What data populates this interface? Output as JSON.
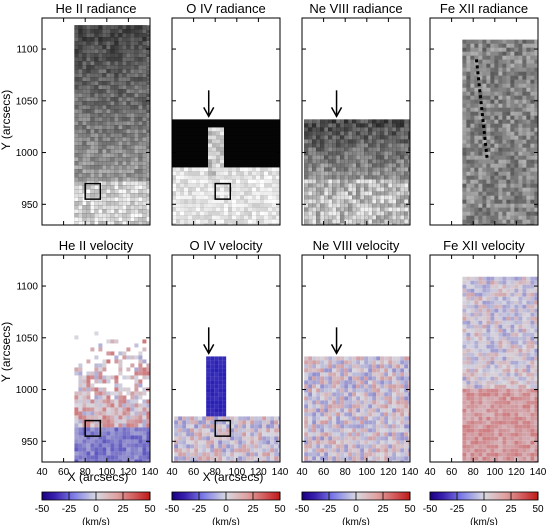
{
  "chart_data": {
    "type": "heatmap",
    "panels": [
      {
        "title": "He II radiance",
        "row": 0,
        "col": 0,
        "kind": "radiance",
        "x_range": [
          70,
          137
        ],
        "y_range": [
          930,
          1123
        ],
        "box": [
          [
            80,
            955
          ],
          [
            94,
            970
          ]
        ]
      },
      {
        "title": "O IV radiance",
        "row": 0,
        "col": 1,
        "kind": "radiance",
        "x_range": [
          40,
          140
        ],
        "y_range": [
          930,
          1032
        ],
        "box": [
          [
            80,
            955
          ],
          [
            94,
            970
          ]
        ],
        "arrow": [
          74,
          1035
        ]
      },
      {
        "title": "Ne VIII radiance",
        "row": 0,
        "col": 2,
        "kind": "radiance",
        "x_range": [
          42,
          140
        ],
        "y_range": [
          930,
          1032
        ],
        "arrow": [
          72,
          1035
        ]
      },
      {
        "title": "Fe XII radiance",
        "row": 0,
        "col": 3,
        "kind": "radiance",
        "x_range": [
          70,
          140
        ],
        "y_range": [
          930,
          1109
        ],
        "dotted_line": [
          [
            83,
            1090
          ],
          [
            93,
            993
          ]
        ]
      },
      {
        "title": "He II velocity",
        "row": 1,
        "col": 0,
        "kind": "velocity",
        "x_range": [
          70,
          137
        ],
        "y_range": [
          930,
          1060
        ],
        "box": [
          [
            80,
            955
          ],
          [
            94,
            970
          ]
        ]
      },
      {
        "title": "O IV velocity",
        "row": 1,
        "col": 1,
        "kind": "velocity",
        "x_range": [
          42,
          140
        ],
        "y_range": [
          930,
          1032
        ],
        "box": [
          [
            80,
            955
          ],
          [
            94,
            970
          ]
        ],
        "arrow": [
          74,
          1035
        ]
      },
      {
        "title": "Ne VIII velocity",
        "row": 1,
        "col": 2,
        "kind": "velocity",
        "x_range": [
          42,
          140
        ],
        "y_range": [
          930,
          1032
        ],
        "arrow": [
          72,
          1035
        ]
      },
      {
        "title": "Fe XII velocity",
        "row": 1,
        "col": 3,
        "kind": "velocity",
        "x_range": [
          70,
          140
        ],
        "y_range": [
          930,
          1109
        ]
      }
    ],
    "xlabel": "X (arcsecs)",
    "ylabel": "Y (arcsecs)",
    "xlim": [
      40,
      140
    ],
    "ylim": [
      930,
      1130
    ],
    "xticks": [
      40,
      60,
      80,
      100,
      120,
      140
    ],
    "yticks": [
      950,
      1000,
      1050,
      1100
    ],
    "colorbar": {
      "ticks": [
        -50,
        -25,
        0,
        25,
        50
      ],
      "label": "(km/s)",
      "range": [
        -50,
        50
      ],
      "colors": [
        "#1a0080",
        "#8080e8",
        "#d8d8e0",
        "#e08a8a",
        "#c01818"
      ]
    },
    "colors": {
      "arrow": "#000000",
      "box": "#000000",
      "dotted_line": "#000000"
    }
  }
}
